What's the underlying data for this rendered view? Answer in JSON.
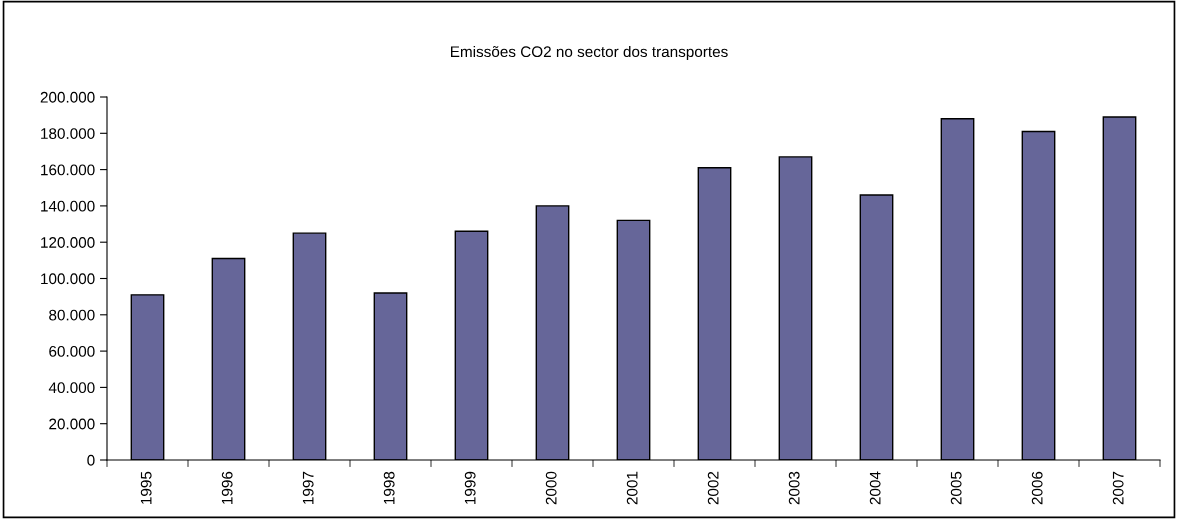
{
  "chart_data": {
    "type": "bar",
    "title": "Emissões CO2 no sector dos transportes",
    "categories": [
      "1995",
      "1996",
      "1997",
      "1998",
      "1999",
      "2000",
      "2001",
      "2002",
      "2003",
      "2004",
      "2005",
      "2006",
      "2007"
    ],
    "values": [
      91000,
      111000,
      125000,
      92000,
      126000,
      140000,
      132000,
      161000,
      167000,
      146000,
      188000,
      181000,
      189000
    ],
    "color": "#666699",
    "ylim": [
      0,
      200000
    ],
    "yticks": [
      {
        "value": 0,
        "label": "0"
      },
      {
        "value": 20000,
        "label": "20.000"
      },
      {
        "value": 40000,
        "label": "40.000"
      },
      {
        "value": 60000,
        "label": "60.000"
      },
      {
        "value": 80000,
        "label": "80.000"
      },
      {
        "value": 100000,
        "label": "100.000"
      },
      {
        "value": 120000,
        "label": "120.000"
      },
      {
        "value": 140000,
        "label": "140.000"
      },
      {
        "value": 160000,
        "label": "160.000"
      },
      {
        "value": 180000,
        "label": "180.000"
      },
      {
        "value": 200000,
        "label": "200.000"
      }
    ],
    "grid": false,
    "legend": false
  }
}
